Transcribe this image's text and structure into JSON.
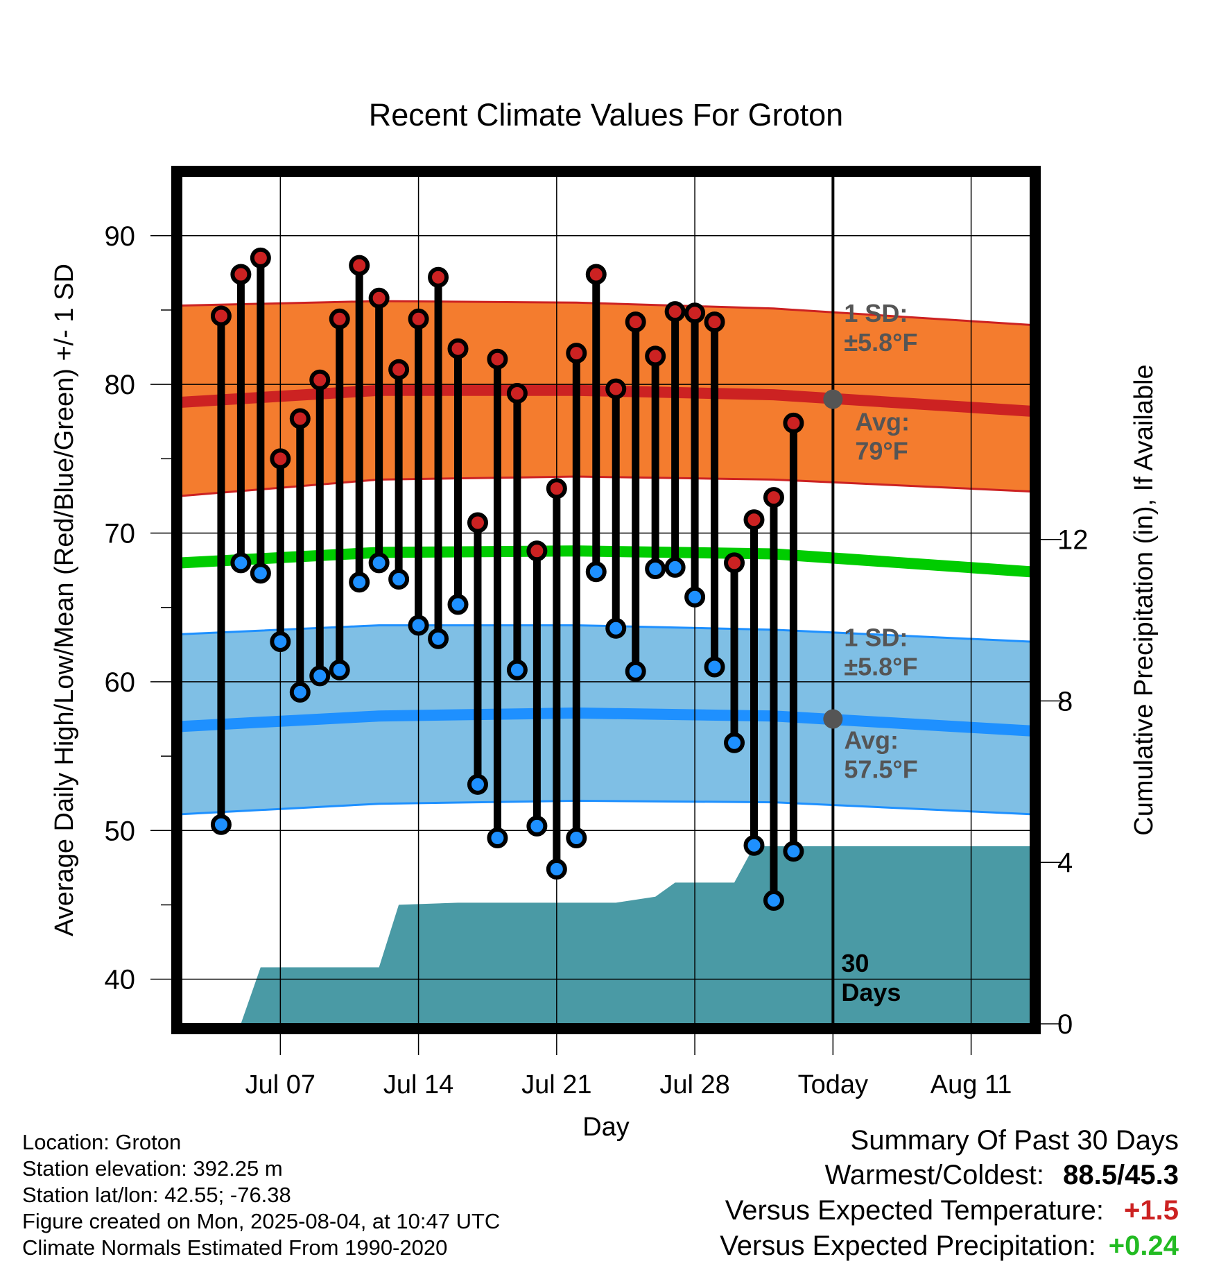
{
  "chart_data": {
    "type": "line",
    "title": "Recent Climate Values For Groton",
    "xlabel": "Day",
    "ylabel": "Average Daily High/Low/Mean (Red/Blue/Green) +/- 1 SD",
    "y2label": "Cumulative Precipitation (in), If Available",
    "ylim": [
      37,
      94
    ],
    "y2lim": [
      0,
      21
    ],
    "yticks": [
      "40",
      "50",
      "60",
      "70",
      "80",
      "90"
    ],
    "y2ticks": [
      "0",
      "4",
      "8",
      "12"
    ],
    "xlim": [
      "2025-07-02",
      "2025-08-14"
    ],
    "xticks": [
      {
        "date": "2025-07-07",
        "label": "Jul 07"
      },
      {
        "date": "2025-07-14",
        "label": "Jul 14"
      },
      {
        "date": "2025-07-21",
        "label": "Jul 21"
      },
      {
        "date": "2025-07-28",
        "label": "Jul 28"
      },
      {
        "date": "2025-08-04",
        "label": "Today"
      },
      {
        "date": "2025-08-11",
        "label": "Aug 11"
      }
    ],
    "grid": true,
    "today": "2025-08-04",
    "days": [
      "2025-07-04",
      "2025-07-05",
      "2025-07-06",
      "2025-07-07",
      "2025-07-08",
      "2025-07-09",
      "2025-07-10",
      "2025-07-11",
      "2025-07-12",
      "2025-07-13",
      "2025-07-14",
      "2025-07-15",
      "2025-07-16",
      "2025-07-17",
      "2025-07-18",
      "2025-07-19",
      "2025-07-20",
      "2025-07-21",
      "2025-07-22",
      "2025-07-23",
      "2025-07-24",
      "2025-07-25",
      "2025-07-26",
      "2025-07-27",
      "2025-07-28",
      "2025-07-29",
      "2025-07-30",
      "2025-07-31",
      "2025-08-01",
      "2025-08-02",
      "2025-08-03"
    ],
    "series": [
      {
        "name": "High",
        "color": "#cc2222",
        "values": [
          84.6,
          87.4,
          88.5,
          75.0,
          77.7,
          80.3,
          84.4,
          88.0,
          85.8,
          81.0,
          84.4,
          87.2,
          82.4,
          70.7,
          81.7,
          79.4,
          68.8,
          73.0,
          82.1,
          87.4,
          79.7,
          84.2,
          81.9,
          84.9,
          84.8,
          84.2,
          68.0,
          70.9,
          72.4,
          77.4,
          null
        ]
      },
      {
        "name": "Low",
        "color": "#1e90ff",
        "values": [
          50.4,
          68.0,
          67.3,
          62.7,
          59.3,
          60.4,
          60.8,
          66.7,
          68.0,
          66.9,
          63.8,
          62.9,
          65.2,
          53.1,
          49.5,
          60.8,
          50.3,
          47.4,
          49.5,
          67.4,
          63.6,
          60.7,
          67.6,
          67.7,
          65.7,
          61.0,
          55.9,
          49.0,
          45.3,
          48.6,
          null
        ]
      }
    ],
    "normals": {
      "x": [
        "2025-07-02",
        "2025-07-12",
        "2025-07-22",
        "2025-08-01",
        "2025-08-14"
      ],
      "high_avg": [
        78.8,
        79.6,
        79.6,
        79.3,
        78.2
      ],
      "high_upper": [
        85.3,
        85.6,
        85.5,
        85.1,
        84.0
      ],
      "high_lower": [
        72.5,
        73.6,
        73.8,
        73.6,
        72.8
      ],
      "mean_avg": [
        68.0,
        68.7,
        68.8,
        68.6,
        67.4
      ],
      "low_avg": [
        57.0,
        57.7,
        57.9,
        57.7,
        56.7
      ],
      "low_upper": [
        63.2,
        63.8,
        63.8,
        63.5,
        62.7
      ],
      "low_lower": [
        51.1,
        51.8,
        52.0,
        51.9,
        51.1
      ]
    },
    "markers": [
      {
        "label_lines": [
          "1 SD:",
          "±5.8°F"
        ],
        "color": "#555555"
      },
      {
        "label_lines": [
          "Avg:",
          "79°F"
        ],
        "value": 79,
        "color": "#555555"
      },
      {
        "label_lines": [
          "1 SD:",
          "±5.8°F"
        ],
        "color": "#555555"
      },
      {
        "label_lines": [
          "Avg:",
          "57.5°F"
        ],
        "value": 57.5,
        "color": "#555555"
      }
    ],
    "today_label": [
      "30",
      "Days"
    ],
    "precip": {
      "color": "#4a9aa5",
      "x": [
        "2025-07-05",
        "2025-07-06",
        "2025-07-12",
        "2025-07-13",
        "2025-07-16",
        "2025-07-24",
        "2025-07-26",
        "2025-07-27",
        "2025-07-30",
        "2025-07-31",
        "2025-08-14"
      ],
      "y": [
        0,
        1.4,
        1.4,
        2.95,
        3.0,
        3.0,
        3.15,
        3.5,
        3.5,
        4.4,
        4.4
      ]
    },
    "colors": {
      "high_band": "#f47c2e",
      "low_band": "#7fbfe5",
      "high_line": "#cc2222",
      "low_line": "#1e90ff",
      "mean_line": "#00cc00",
      "stem": "#000000"
    }
  },
  "footer": [
    "Location: Groton",
    "Station elevation: 392.25 m",
    "Station lat/lon: 42.55; -76.38",
    "Figure created on Mon, 2025-08-04, at 10:47 UTC",
    "Climate Normals Estimated From 1990-2020"
  ],
  "summary": {
    "title": "Summary Of Past 30 Days",
    "rows": [
      {
        "label": "Warmest/Coldest:",
        "value": "88.5/45.3",
        "color": "#000000"
      },
      {
        "label": "Versus Expected Temperature:",
        "value": "+1.5",
        "color": "#cc2222"
      },
      {
        "label": "Versus Expected Precipitation:",
        "value": "+0.24",
        "color": "#22bb22"
      }
    ]
  }
}
